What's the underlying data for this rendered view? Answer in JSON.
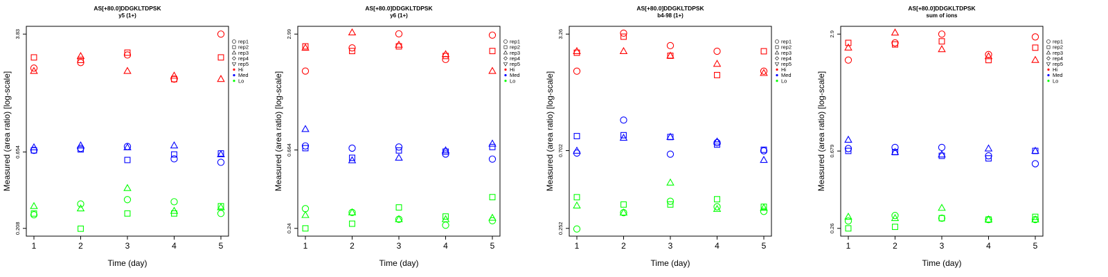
{
  "colors": {
    "Hi": "#ff0000",
    "Med": "#0000ff",
    "Lo": "#00ff00"
  },
  "legend": {
    "placement": "right",
    "reps": [
      {
        "label": "rep1",
        "marker": "circle"
      },
      {
        "label": "rep2",
        "marker": "square"
      },
      {
        "label": "rep3",
        "marker": "triangle-up"
      },
      {
        "label": "rep4",
        "marker": "diamond"
      },
      {
        "label": "rep5",
        "marker": "triangle-down"
      }
    ],
    "levels": [
      {
        "label": "Hi",
        "color": "#ff0000"
      },
      {
        "label": "Med",
        "color": "#0000ff"
      },
      {
        "label": "Lo",
        "color": "#00ff00"
      }
    ]
  },
  "chart_data": [
    {
      "type": "scatter",
      "title": "AS[+80.0]DDGKLTDPSK",
      "subtitle": "y5 (1+)",
      "xlabel": "Time (day)",
      "ylabel": "Measured (area ratio) [log-scale]",
      "yscale": "log",
      "x_ticks": [
        1,
        2,
        3,
        4,
        5
      ],
      "y_ticks": [
        0.208,
        0.654,
        3.83
      ],
      "y_tick_labels": [
        "0.208",
        "0.654",
        "3.83"
      ],
      "ylim": [
        0.208,
        3.83
      ],
      "grid": false,
      "series": [
        {
          "level": "Hi",
          "rep": "rep1",
          "x": [
            1,
            2,
            3,
            4,
            5
          ],
          "y": [
            2.3,
            2.5,
            2.8,
            1.95,
            3.83
          ]
        },
        {
          "level": "Hi",
          "rep": "rep2",
          "x": [
            1,
            2,
            3,
            4,
            5
          ],
          "y": [
            2.7,
            2.6,
            2.9,
            1.95,
            2.7
          ]
        },
        {
          "level": "Hi",
          "rep": "rep3",
          "x": [
            1,
            2,
            3,
            4,
            5
          ],
          "y": [
            2.2,
            2.75,
            2.2,
            2.05,
            1.95
          ]
        },
        {
          "level": "Med",
          "rep": "rep1",
          "x": [
            1,
            2,
            3,
            4,
            5
          ],
          "y": [
            0.67,
            0.69,
            0.71,
            0.59,
            0.56
          ]
        },
        {
          "level": "Med",
          "rep": "rep2",
          "x": [
            1,
            2,
            3,
            4,
            5
          ],
          "y": [
            0.67,
            0.68,
            0.58,
            0.63,
            0.64
          ]
        },
        {
          "level": "Med",
          "rep": "rep3",
          "x": [
            1,
            2,
            3,
            4,
            5
          ],
          "y": [
            0.7,
            0.72,
            0.7,
            0.72,
            0.63
          ]
        },
        {
          "level": "Lo",
          "rep": "rep1",
          "x": [
            1,
            2,
            3,
            4,
            5
          ],
          "y": [
            0.255,
            0.3,
            0.32,
            0.31,
            0.26
          ]
        },
        {
          "level": "Lo",
          "rep": "rep2",
          "x": [
            1,
            2,
            3,
            4,
            5
          ],
          "y": [
            0.26,
            0.207,
            0.26,
            0.26,
            0.29
          ]
        },
        {
          "level": "Lo",
          "rep": "rep3",
          "x": [
            1,
            2,
            3,
            4,
            5
          ],
          "y": [
            0.29,
            0.28,
            0.38,
            0.27,
            0.285
          ]
        }
      ]
    },
    {
      "type": "scatter",
      "title": "AS[+80.0]DDGKLTDPSK",
      "subtitle": "y6 (1+)",
      "xlabel": "Time (day)",
      "ylabel": "Measured (area ratio) [log-scale]",
      "yscale": "log",
      "x_ticks": [
        1,
        2,
        3,
        4,
        5
      ],
      "y_ticks": [
        0.24,
        0.664,
        2.99
      ],
      "y_tick_labels": [
        "0.24",
        "0.664",
        "2.99"
      ],
      "ylim": [
        0.24,
        2.99
      ],
      "grid": false,
      "series": [
        {
          "level": "Hi",
          "rep": "rep1",
          "x": [
            1,
            2,
            3,
            4,
            5
          ],
          "y": [
            1.85,
            2.5,
            3.0,
            2.15,
            2.95
          ]
        },
        {
          "level": "Hi",
          "rep": "rep2",
          "x": [
            1,
            2,
            3,
            4,
            5
          ],
          "y": [
            2.55,
            2.4,
            2.55,
            2.25,
            2.4
          ]
        },
        {
          "level": "Hi",
          "rep": "rep3",
          "x": [
            1,
            2,
            3,
            4,
            5
          ],
          "y": [
            2.5,
            3.05,
            2.6,
            2.3,
            1.85
          ]
        },
        {
          "level": "Med",
          "rep": "rep1",
          "x": [
            1,
            2,
            3,
            4,
            5
          ],
          "y": [
            0.7,
            0.68,
            0.69,
            0.63,
            0.59
          ]
        },
        {
          "level": "Med",
          "rep": "rep2",
          "x": [
            1,
            2,
            3,
            4,
            5
          ],
          "y": [
            0.68,
            0.6,
            0.66,
            0.65,
            0.69
          ]
        },
        {
          "level": "Med",
          "rep": "rep3",
          "x": [
            1,
            2,
            3,
            4,
            5
          ],
          "y": [
            0.87,
            0.58,
            0.6,
            0.66,
            0.72
          ]
        },
        {
          "level": "Lo",
          "rep": "rep1",
          "x": [
            1,
            2,
            3,
            4,
            5
          ],
          "y": [
            0.31,
            0.295,
            0.27,
            0.25,
            0.265
          ]
        },
        {
          "level": "Lo",
          "rep": "rep2",
          "x": [
            1,
            2,
            3,
            4,
            5
          ],
          "y": [
            0.24,
            0.255,
            0.315,
            0.28,
            0.36
          ]
        },
        {
          "level": "Lo",
          "rep": "rep3",
          "x": [
            1,
            2,
            3,
            4,
            5
          ],
          "y": [
            0.285,
            0.295,
            0.27,
            0.27,
            0.275
          ]
        }
      ]
    },
    {
      "type": "scatter",
      "title": "AS[+80.0]DDGKLTDPSK",
      "subtitle": "b4-98 (1+)",
      "xlabel": "Time (day)",
      "ylabel": "Measured (area ratio) [log-scale]",
      "yscale": "log",
      "x_ticks": [
        1,
        2,
        3,
        4,
        5
      ],
      "y_ticks": [
        0.252,
        0.702,
        3.26
      ],
      "y_tick_labels": [
        "0.252",
        "0.702",
        "3.26"
      ],
      "ylim": [
        0.252,
        3.26
      ],
      "grid": false,
      "series": [
        {
          "level": "Hi",
          "rep": "rep1",
          "x": [
            1,
            2,
            3,
            4,
            5
          ],
          "y": [
            2.0,
            3.3,
            2.8,
            2.6,
            2.0
          ]
        },
        {
          "level": "Hi",
          "rep": "rep2",
          "x": [
            1,
            2,
            3,
            4,
            5
          ],
          "y": [
            2.55,
            3.15,
            2.45,
            1.9,
            2.6
          ]
        },
        {
          "level": "Hi",
          "rep": "rep3",
          "x": [
            1,
            2,
            3,
            4,
            5
          ],
          "y": [
            2.6,
            2.6,
            2.45,
            2.2,
            1.95
          ]
        },
        {
          "level": "Med",
          "rep": "rep1",
          "x": [
            1,
            2,
            3,
            4,
            5
          ],
          "y": [
            0.68,
            1.05,
            0.67,
            0.78,
            0.7
          ]
        },
        {
          "level": "Med",
          "rep": "rep2",
          "x": [
            1,
            2,
            3,
            4,
            5
          ],
          "y": [
            0.85,
            0.86,
            0.84,
            0.76,
            0.71
          ]
        },
        {
          "level": "Med",
          "rep": "rep3",
          "x": [
            1,
            2,
            3,
            4,
            5
          ],
          "y": [
            0.7,
            0.83,
            0.84,
            0.79,
            0.62
          ]
        },
        {
          "level": "Lo",
          "rep": "rep1",
          "x": [
            1,
            2,
            3,
            4,
            5
          ],
          "y": [
            0.25,
            0.31,
            0.36,
            0.335,
            0.315
          ]
        },
        {
          "level": "Lo",
          "rep": "rep2",
          "x": [
            1,
            2,
            3,
            4,
            5
          ],
          "y": [
            0.38,
            0.345,
            0.345,
            0.37,
            0.335
          ]
        },
        {
          "level": "Lo",
          "rep": "rep3",
          "x": [
            1,
            2,
            3,
            4,
            5
          ],
          "y": [
            0.34,
            0.31,
            0.46,
            0.325,
            0.33
          ]
        }
      ]
    },
    {
      "type": "scatter",
      "title": "AS[+80.0]DDGKLTDPSK",
      "subtitle": "sum of ions",
      "xlabel": "Time (day)",
      "ylabel": "Measured (area ratio) [log-scale]",
      "yscale": "log",
      "x_ticks": [
        1,
        2,
        3,
        4,
        5
      ],
      "y_ticks": [
        0.26,
        0.679,
        2.9
      ],
      "y_tick_labels": [
        "0.26",
        "0.679",
        "2.9"
      ],
      "ylim": [
        0.26,
        2.9
      ],
      "grid": false,
      "series": [
        {
          "level": "Hi",
          "rep": "rep1",
          "x": [
            1,
            2,
            3,
            4,
            5
          ],
          "y": [
            2.1,
            2.6,
            2.9,
            2.25,
            2.8
          ]
        },
        {
          "level": "Hi",
          "rep": "rep2",
          "x": [
            1,
            2,
            3,
            4,
            5
          ],
          "y": [
            2.6,
            2.55,
            2.65,
            2.1,
            2.45
          ]
        },
        {
          "level": "Hi",
          "rep": "rep3",
          "x": [
            1,
            2,
            3,
            4,
            5
          ],
          "y": [
            2.45,
            2.95,
            2.4,
            2.2,
            2.1
          ]
        },
        {
          "level": "Med",
          "rep": "rep1",
          "x": [
            1,
            2,
            3,
            4,
            5
          ],
          "y": [
            0.7,
            0.71,
            0.71,
            0.64,
            0.58
          ]
        },
        {
          "level": "Med",
          "rep": "rep2",
          "x": [
            1,
            2,
            3,
            4,
            5
          ],
          "y": [
            0.68,
            0.67,
            0.64,
            0.62,
            0.68
          ]
        },
        {
          "level": "Med",
          "rep": "rep3",
          "x": [
            1,
            2,
            3,
            4,
            5
          ],
          "y": [
            0.78,
            0.67,
            0.65,
            0.7,
            0.68
          ]
        },
        {
          "level": "Lo",
          "rep": "rep1",
          "x": [
            1,
            2,
            3,
            4,
            5
          ],
          "y": [
            0.285,
            0.305,
            0.295,
            0.29,
            0.29
          ]
        },
        {
          "level": "Lo",
          "rep": "rep2",
          "x": [
            1,
            2,
            3,
            4,
            5
          ],
          "y": [
            0.26,
            0.265,
            0.295,
            0.29,
            0.3
          ]
        },
        {
          "level": "Lo",
          "rep": "rep3",
          "x": [
            1,
            2,
            3,
            4,
            5
          ],
          "y": [
            0.3,
            0.295,
            0.335,
            0.29,
            0.29
          ]
        }
      ]
    }
  ]
}
